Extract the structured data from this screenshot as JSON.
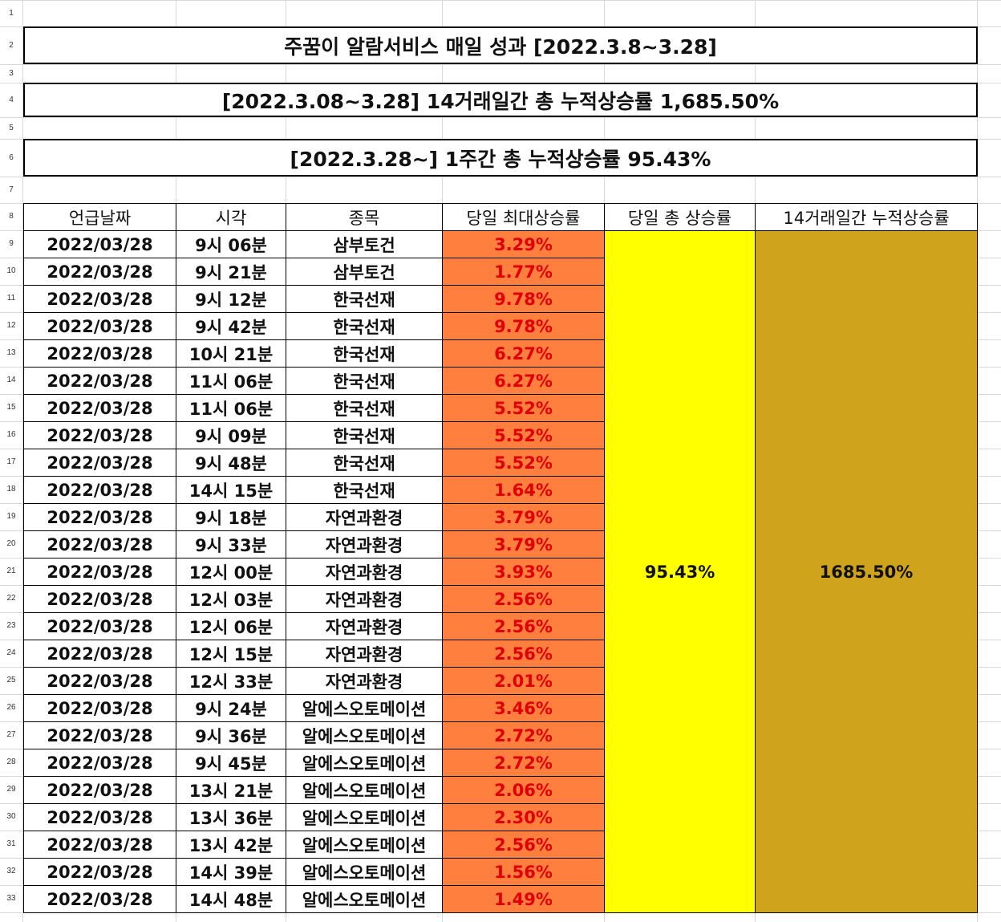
{
  "sheet": {
    "title1": "주꿈이 알람서비스 매일 성과 [2022.3.8~3.28]",
    "title2": "[2022.3.08~3.28] 14거래일간 총 누적상승률 1,685.50%",
    "title3": "[2022.3.28~] 1주간 총 누적상승률 95.43%",
    "row_numbers": [
      "1",
      "2",
      "3",
      "4",
      "5",
      "6",
      "7",
      "8",
      "9",
      "10",
      "11",
      "12",
      "13",
      "14",
      "15",
      "16",
      "17",
      "18",
      "19",
      "20",
      "21",
      "22",
      "23",
      "24",
      "25",
      "26",
      "27",
      "28",
      "29",
      "30",
      "31",
      "32",
      "33"
    ],
    "headers": [
      "언급날짜",
      "시각",
      "종목",
      "당일 최대상승률",
      "당일 총 상승률",
      "14거래일간 누적상승률"
    ],
    "daily_total": "95.43%",
    "cumulative_total": "1685.50%",
    "colors": {
      "orange": "#ff7f3f",
      "yellow": "#ffff00",
      "gold": "#cfa31c",
      "red_text": "#e00000"
    },
    "rows": [
      [
        "2022/03/28",
        "9시 06분",
        "삼부토건",
        "3.29%"
      ],
      [
        "2022/03/28",
        "9시 21분",
        "삼부토건",
        "1.77%"
      ],
      [
        "2022/03/28",
        "9시 12분",
        "한국선재",
        "9.78%"
      ],
      [
        "2022/03/28",
        "9시 42분",
        "한국선재",
        "9.78%"
      ],
      [
        "2022/03/28",
        "10시 21분",
        "한국선재",
        "6.27%"
      ],
      [
        "2022/03/28",
        "11시 06분",
        "한국선재",
        "6.27%"
      ],
      [
        "2022/03/28",
        "11시 06분",
        "한국선재",
        "5.52%"
      ],
      [
        "2022/03/28",
        "9시 09분",
        "한국선재",
        "5.52%"
      ],
      [
        "2022/03/28",
        "9시 48분",
        "한국선재",
        "5.52%"
      ],
      [
        "2022/03/28",
        "14시 15분",
        "한국선재",
        "1.64%"
      ],
      [
        "2022/03/28",
        "9시 18분",
        "자연과환경",
        "3.79%"
      ],
      [
        "2022/03/28",
        "9시 33분",
        "자연과환경",
        "3.79%"
      ],
      [
        "2022/03/28",
        "12시 00분",
        "자연과환경",
        "3.93%"
      ],
      [
        "2022/03/28",
        "12시 03분",
        "자연과환경",
        "2.56%"
      ],
      [
        "2022/03/28",
        "12시 06분",
        "자연과환경",
        "2.56%"
      ],
      [
        "2022/03/28",
        "12시 15분",
        "자연과환경",
        "2.56%"
      ],
      [
        "2022/03/28",
        "12시 33분",
        "자연과환경",
        "2.01%"
      ],
      [
        "2022/03/28",
        "9시 24분",
        "알에스오토메이션",
        "3.46%"
      ],
      [
        "2022/03/28",
        "9시 36분",
        "알에스오토메이션",
        "2.72%"
      ],
      [
        "2022/03/28",
        "9시 45분",
        "알에스오토메이션",
        "2.72%"
      ],
      [
        "2022/03/28",
        "13시 21분",
        "알에스오토메이션",
        "2.06%"
      ],
      [
        "2022/03/28",
        "13시 36분",
        "알에스오토메이션",
        "2.30%"
      ],
      [
        "2022/03/28",
        "13시 42분",
        "알에스오토메이션",
        "2.56%"
      ],
      [
        "2022/03/28",
        "14시 39분",
        "알에스오토메이션",
        "1.56%"
      ],
      [
        "2022/03/28",
        "14시 48분",
        "알에스오토메이션",
        "1.49%"
      ]
    ]
  }
}
